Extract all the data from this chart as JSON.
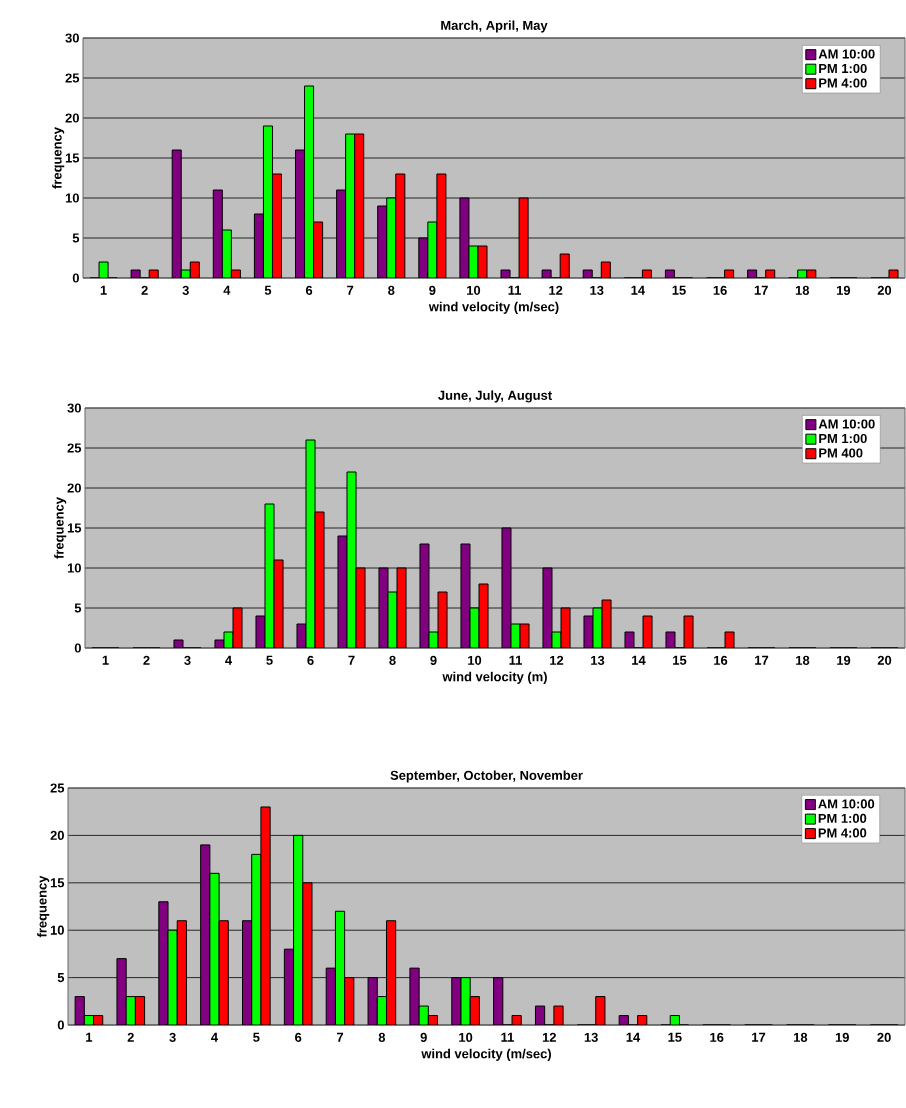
{
  "chart_data": [
    {
      "type": "bar",
      "title": "March, April, May",
      "xlabel": "wind velocity (m/sec)",
      "ylabel": "frequency",
      "categories": [
        "1",
        "2",
        "3",
        "4",
        "5",
        "6",
        "7",
        "8",
        "9",
        "10",
        "11",
        "12",
        "13",
        "14",
        "15",
        "16",
        "17",
        "18",
        "19",
        "20"
      ],
      "series": [
        {
          "name": "AM 10:00",
          "color": "#800080",
          "values": [
            0,
            1,
            16,
            11,
            8,
            16,
            11,
            9,
            5,
            10,
            1,
            1,
            1,
            0,
            1,
            0,
            1,
            0,
            0,
            0
          ]
        },
        {
          "name": "PM 1:00",
          "color": "#00ff00",
          "values": [
            2,
            0,
            1,
            6,
            19,
            24,
            18,
            10,
            7,
            4,
            0,
            0,
            0,
            0,
            0,
            0,
            0,
            1,
            0,
            0
          ]
        },
        {
          "name": "PM 4:00",
          "color": "#ff0000",
          "values": [
            0,
            1,
            2,
            1,
            13,
            7,
            18,
            13,
            13,
            4,
            10,
            3,
            2,
            1,
            0,
            1,
            1,
            1,
            0,
            1
          ]
        }
      ],
      "ylim": [
        0,
        30
      ],
      "yticks": [
        0,
        5,
        10,
        15,
        20,
        25,
        30
      ],
      "grid": "y",
      "legend": "top right"
    },
    {
      "type": "bar",
      "title": "June, July, August",
      "xlabel": "wind velocity (m)",
      "ylabel": "frequency",
      "categories": [
        "1",
        "2",
        "3",
        "4",
        "5",
        "6",
        "7",
        "8",
        "9",
        "10",
        "11",
        "12",
        "13",
        "14",
        "15",
        "16",
        "17",
        "18",
        "19",
        "20"
      ],
      "series": [
        {
          "name": "AM 10:00",
          "color": "#800080",
          "values": [
            0,
            0,
            1,
            1,
            4,
            3,
            14,
            10,
            13,
            13,
            15,
            10,
            4,
            2,
            2,
            0,
            0,
            0,
            0,
            0
          ]
        },
        {
          "name": "PM 1:00",
          "color": "#00ff00",
          "values": [
            0,
            0,
            0,
            2,
            18,
            26,
            22,
            7,
            2,
            5,
            3,
            2,
            5,
            0,
            0,
            0,
            0,
            0,
            0,
            0
          ]
        },
        {
          "name": "PM 400",
          "color": "#ff0000",
          "values": [
            0,
            0,
            0,
            5,
            11,
            17,
            10,
            10,
            7,
            8,
            3,
            5,
            6,
            4,
            4,
            2,
            0,
            0,
            0,
            0
          ]
        }
      ],
      "ylim": [
        0,
        30
      ],
      "yticks": [
        0,
        5,
        10,
        15,
        20,
        25,
        30
      ],
      "grid": "y",
      "legend": "top right"
    },
    {
      "type": "bar",
      "title": "September, October, November",
      "xlabel": "wind velocity (m/sec)",
      "ylabel": "frequency",
      "categories": [
        "1",
        "2",
        "3",
        "4",
        "5",
        "6",
        "7",
        "8",
        "9",
        "10",
        "11",
        "12",
        "13",
        "14",
        "15",
        "16",
        "17",
        "18",
        "19",
        "20"
      ],
      "series": [
        {
          "name": "AM 10:00",
          "color": "#800080",
          "values": [
            3,
            7,
            13,
            19,
            11,
            8,
            6,
            5,
            6,
            5,
            5,
            2,
            0,
            1,
            0,
            0,
            0,
            0,
            0,
            0
          ]
        },
        {
          "name": "PM 1:00",
          "color": "#00ff00",
          "values": [
            1,
            3,
            10,
            16,
            18,
            20,
            12,
            3,
            2,
            5,
            0,
            0,
            0,
            0,
            1,
            0,
            0,
            0,
            0,
            0
          ]
        },
        {
          "name": "PM 4:00",
          "color": "#ff0000",
          "values": [
            1,
            3,
            11,
            11,
            23,
            15,
            5,
            11,
            1,
            3,
            1,
            2,
            3,
            1,
            0,
            0,
            0,
            0,
            0,
            0
          ]
        }
      ],
      "ylim": [
        0,
        25
      ],
      "yticks": [
        0,
        5,
        10,
        15,
        20,
        25
      ],
      "grid": "y",
      "legend": "top right"
    }
  ]
}
